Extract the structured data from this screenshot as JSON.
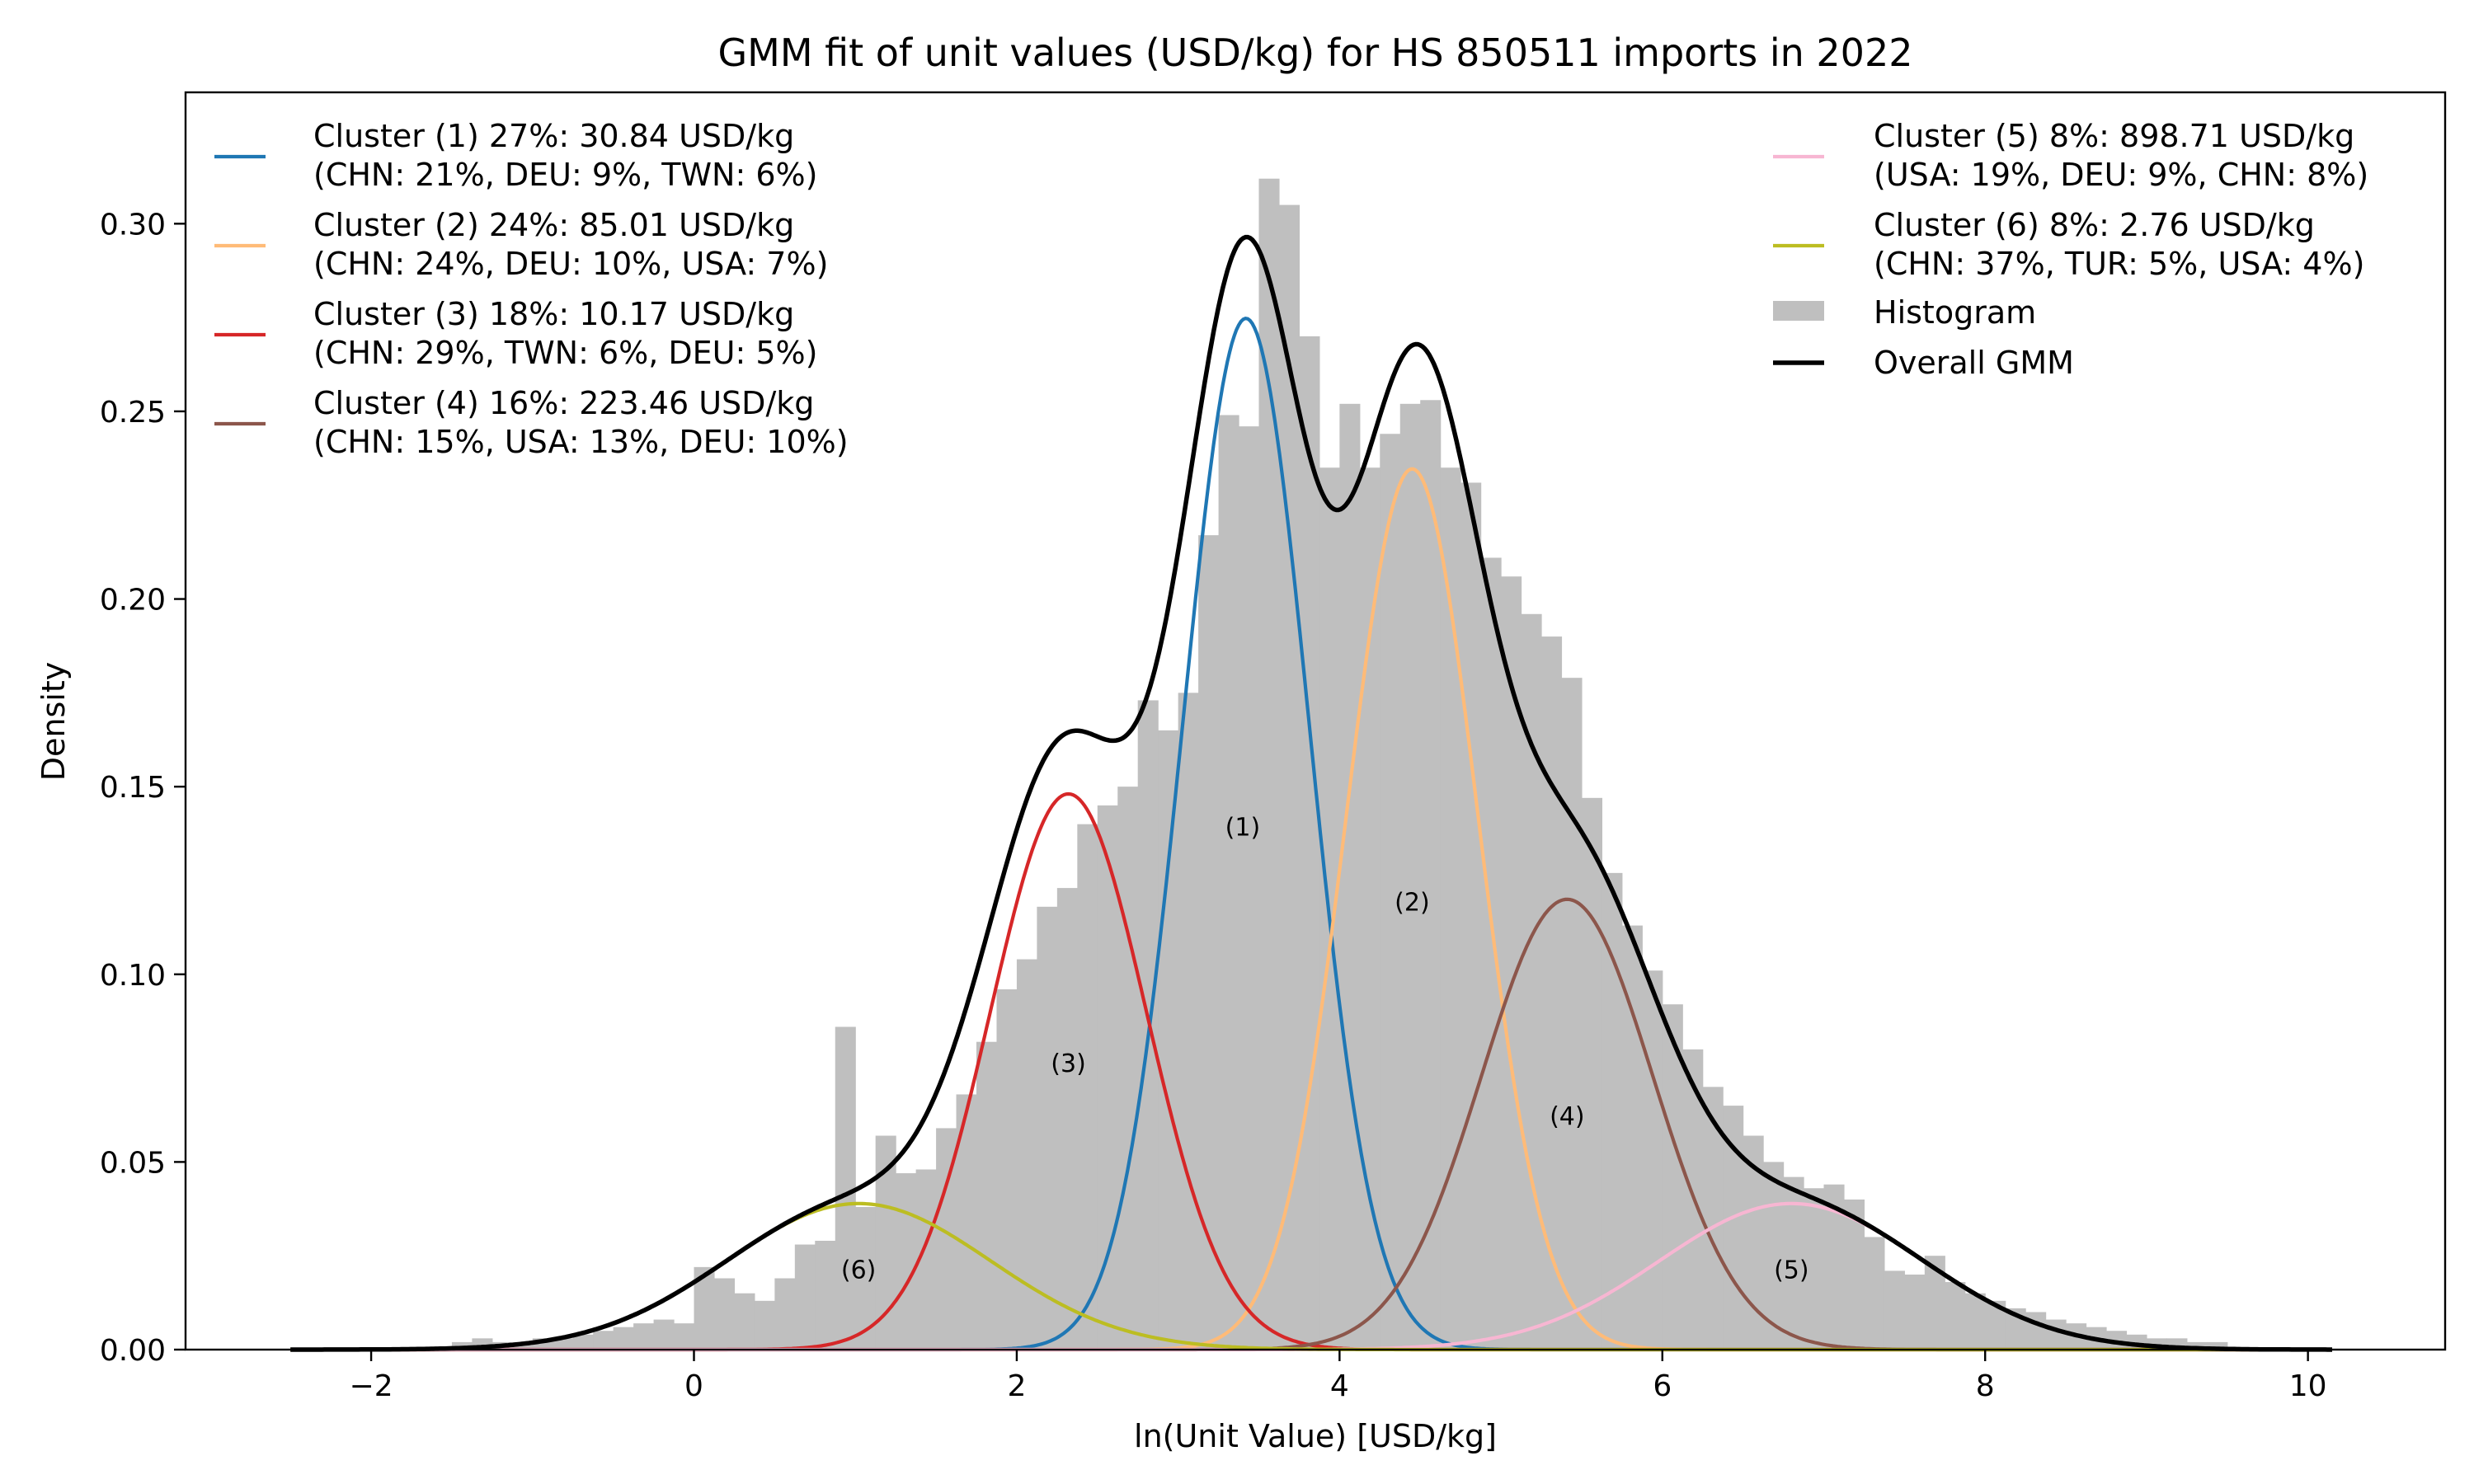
{
  "chart_data": {
    "type": "area",
    "title": "GMM fit of unit values (USD/kg) for HS 850511 imports in 2022",
    "xlabel": "ln(Unit Value) [USD/kg]",
    "ylabel": "Density",
    "xlim": [
      -3.15,
      10.85
    ],
    "ylim": [
      0,
      0.335
    ],
    "xticks": [
      -2,
      0,
      2,
      4,
      6,
      8,
      10
    ],
    "xtick_labels": [
      "−2",
      "0",
      "2",
      "4",
      "6",
      "8",
      "10"
    ],
    "yticks": [
      0,
      0.05,
      0.1,
      0.15,
      0.2,
      0.25,
      0.3
    ],
    "ytick_labels": [
      "0.00",
      "0.05",
      "0.10",
      "0.15",
      "0.20",
      "0.25",
      "0.30"
    ],
    "grid": false,
    "legend_placement": "top, two columns (left and right)",
    "curve_range": [
      -2.5,
      10.15
    ],
    "histogram": {
      "name": "Histogram",
      "color": "#bfbfbf",
      "bin_width": 0.125,
      "bins": [
        [
          -1.5,
          0.002
        ],
        [
          -1.375,
          0.003
        ],
        [
          -1.25,
          0.002
        ],
        [
          -1.125,
          0.002
        ],
        [
          -1.0,
          0.003
        ],
        [
          -0.875,
          0.003
        ],
        [
          -0.75,
          0.004
        ],
        [
          -0.625,
          0.005
        ],
        [
          -0.5,
          0.006
        ],
        [
          -0.375,
          0.007
        ],
        [
          -0.25,
          0.008
        ],
        [
          -0.125,
          0.007
        ],
        [
          0.0,
          0.022
        ],
        [
          0.125,
          0.019
        ],
        [
          0.25,
          0.015
        ],
        [
          0.375,
          0.013
        ],
        [
          0.5,
          0.019
        ],
        [
          0.625,
          0.028
        ],
        [
          0.75,
          0.029
        ],
        [
          0.875,
          0.086
        ],
        [
          1.0,
          0.038
        ],
        [
          1.125,
          0.057
        ],
        [
          1.25,
          0.047
        ],
        [
          1.375,
          0.048
        ],
        [
          1.5,
          0.059
        ],
        [
          1.625,
          0.068
        ],
        [
          1.75,
          0.082
        ],
        [
          1.875,
          0.096
        ],
        [
          2.0,
          0.104
        ],
        [
          2.125,
          0.118
        ],
        [
          2.25,
          0.123
        ],
        [
          2.375,
          0.14
        ],
        [
          2.5,
          0.145
        ],
        [
          2.625,
          0.15
        ],
        [
          2.75,
          0.173
        ],
        [
          2.875,
          0.165
        ],
        [
          3.0,
          0.175
        ],
        [
          3.125,
          0.217
        ],
        [
          3.25,
          0.249
        ],
        [
          3.375,
          0.246
        ],
        [
          3.5,
          0.312
        ],
        [
          3.625,
          0.305
        ],
        [
          3.75,
          0.27
        ],
        [
          3.875,
          0.235
        ],
        [
          4.0,
          0.252
        ],
        [
          4.125,
          0.235
        ],
        [
          4.25,
          0.244
        ],
        [
          4.375,
          0.252
        ],
        [
          4.5,
          0.253
        ],
        [
          4.625,
          0.235
        ],
        [
          4.75,
          0.231
        ],
        [
          4.875,
          0.211
        ],
        [
          5.0,
          0.206
        ],
        [
          5.125,
          0.196
        ],
        [
          5.25,
          0.19
        ],
        [
          5.375,
          0.179
        ],
        [
          5.5,
          0.147
        ],
        [
          5.625,
          0.127
        ],
        [
          5.75,
          0.113
        ],
        [
          5.875,
          0.101
        ],
        [
          6.0,
          0.092
        ],
        [
          6.125,
          0.08
        ],
        [
          6.25,
          0.07
        ],
        [
          6.375,
          0.065
        ],
        [
          6.5,
          0.057
        ],
        [
          6.625,
          0.05
        ],
        [
          6.75,
          0.046
        ],
        [
          6.875,
          0.043
        ],
        [
          7.0,
          0.044
        ],
        [
          7.125,
          0.04
        ],
        [
          7.25,
          0.03
        ],
        [
          7.375,
          0.021
        ],
        [
          7.5,
          0.02
        ],
        [
          7.625,
          0.025
        ],
        [
          7.75,
          0.018
        ],
        [
          7.875,
          0.015
        ],
        [
          8.0,
          0.013
        ],
        [
          8.125,
          0.011
        ],
        [
          8.25,
          0.01
        ],
        [
          8.375,
          0.008
        ],
        [
          8.5,
          0.007
        ],
        [
          8.625,
          0.006
        ],
        [
          8.75,
          0.005
        ],
        [
          8.875,
          0.004
        ],
        [
          9.0,
          0.003
        ],
        [
          9.125,
          0.003
        ],
        [
          9.25,
          0.002
        ],
        [
          9.375,
          0.002
        ]
      ]
    },
    "overall": {
      "name": "Overall GMM",
      "color": "#000000"
    },
    "series": [
      {
        "name": "Cluster (1) 27%: 30.84 USD/kg",
        "countries": "(CHN: 21%, DEU: 9%, TWN: 6%)",
        "label": "(1)",
        "weight": 0.27,
        "mean": 3.42,
        "sd": 0.392,
        "color": "#1f77b4",
        "label_x": 3.4,
        "label_y": 0.137
      },
      {
        "name": "Cluster (2) 24%: 85.01 USD/kg",
        "countries": "(CHN: 24%, DEU: 10%, USA: 7%)",
        "label": "(2)",
        "weight": 0.24,
        "mean": 4.45,
        "sd": 0.408,
        "color": "#ffbb78",
        "label_x": 4.45,
        "label_y": 0.117
      },
      {
        "name": "Cluster (3) 18%: 10.17 USD/kg",
        "countries": "(CHN: 29%, TWN: 6%, DEU: 5%)",
        "label": "(3)",
        "weight": 0.18,
        "mean": 2.32,
        "sd": 0.485,
        "color": "#d62728",
        "label_x": 2.32,
        "label_y": 0.074
      },
      {
        "name": "Cluster (4) 16%: 223.46 USD/kg",
        "countries": "(CHN: 15%, USA: 13%, DEU: 10%)",
        "label": "(4)",
        "weight": 0.16,
        "mean": 5.41,
        "sd": 0.532,
        "color": "#8c564b",
        "label_x": 5.41,
        "label_y": 0.06
      },
      {
        "name": "Cluster (5) 8%: 898.71 USD/kg",
        "countries": "(USA: 19%, DEU: 9%, CHN: 8%)",
        "label": "(5)",
        "weight": 0.08,
        "mean": 6.8,
        "sd": 0.82,
        "color": "#f7b6d2",
        "label_x": 6.8,
        "label_y": 0.019
      },
      {
        "name": "Cluster (6) 8%: 2.76 USD/kg",
        "countries": "(CHN: 37%, TUR: 5%, USA: 4%)",
        "label": "(6)",
        "weight": 0.08,
        "mean": 1.02,
        "sd": 0.82,
        "color": "#bcbd22",
        "label_x": 1.02,
        "label_y": 0.019
      }
    ]
  }
}
